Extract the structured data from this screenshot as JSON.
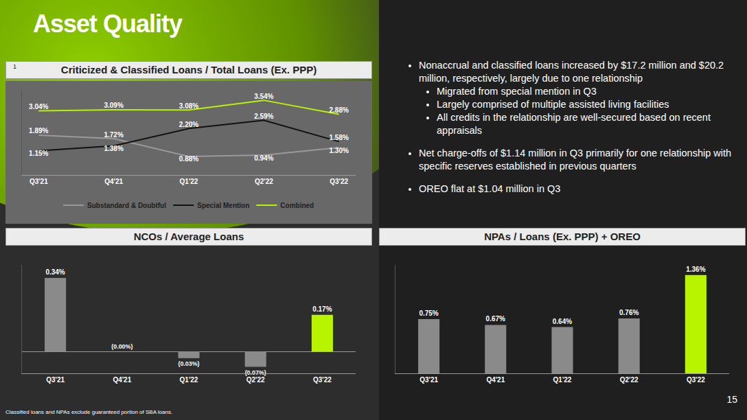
{
  "slide": {
    "title": "Asset Quality",
    "page_number": "15",
    "footnote": "Classified loans and NPAs exclude guaranteed portion of SBA loans.",
    "footnote_marker": "1",
    "bullets": [
      {
        "text": "Nonaccrual and classified loans increased by $17.2 million and $20.2 million, respectively, largely due to one relationship",
        "sub": [
          "Migrated from special mention in Q3",
          "Largely comprised of multiple assisted living facilities",
          "All credits in the relationship are well-secured based on recent appraisals"
        ]
      },
      {
        "text": "Net charge-offs of $1.14 million in Q3 primarily for one relationship with specific reserves established in previous quarters"
      },
      {
        "text": "OREO flat at $1.04 million in Q3"
      }
    ]
  },
  "chart_data": [
    {
      "type": "line",
      "title": "Criticized & Classified Loans / Total Loans (Ex. PPP)",
      "categories": [
        "Q3'21",
        "Q4'21",
        "Q1'22",
        "Q2'22",
        "Q3'22"
      ],
      "series": [
        {
          "name": "Substandard & Doubtful",
          "color": "#9a9a9a",
          "values": [
            1.89,
            1.72,
            0.88,
            0.94,
            1.3
          ],
          "value_labels": [
            "1.89%",
            "1.72%",
            "0.88%",
            "0.94%",
            "1.30%"
          ]
        },
        {
          "name": "Special Mention",
          "color": "#111111",
          "values": [
            1.15,
            1.38,
            2.2,
            2.59,
            1.58
          ],
          "value_labels": [
            "1.15%",
            "1.38%",
            "2.20%",
            "2.59%",
            "1.58%"
          ]
        },
        {
          "name": "Combined",
          "color": "#b8f400",
          "values": [
            3.04,
            3.09,
            3.08,
            3.54,
            2.88
          ],
          "value_labels": [
            "3.04%",
            "3.09%",
            "3.08%",
            "3.54%",
            "2.88%"
          ]
        }
      ],
      "ylim": [
        0,
        4
      ],
      "grid": false,
      "legend": "bottom",
      "data_labels": true,
      "tick_labels": "x"
    },
    {
      "type": "bar",
      "title": "NCOs / Average Loans",
      "categories": [
        "Q3'21",
        "Q4'21",
        "Q1'22",
        "Q2'22",
        "Q3'22"
      ],
      "values": [
        0.34,
        0,
        -0.03,
        -0.07,
        0.17
      ],
      "value_labels": [
        "0.34%",
        "(0.00%)",
        "(0.03%)",
        "(0.07%)",
        "0.17%"
      ],
      "colors": [
        "#8a8a8a",
        "#8a8a8a",
        "#8a8a8a",
        "#8a8a8a",
        "#b8f400"
      ],
      "ylim": [
        -0.1,
        0.4
      ],
      "grid": false,
      "data_labels": true,
      "tick_labels": "x"
    },
    {
      "type": "bar",
      "title": "NPAs / Loans (Ex. PPP) + OREO",
      "categories": [
        "Q3'21",
        "Q4'21",
        "Q1'22",
        "Q2'22",
        "Q3'22"
      ],
      "values": [
        0.75,
        0.67,
        0.64,
        0.76,
        1.36
      ],
      "value_labels": [
        "0.75%",
        "0.67%",
        "0.64%",
        "0.76%",
        "1.36%"
      ],
      "colors": [
        "#8a8a8a",
        "#8a8a8a",
        "#8a8a8a",
        "#8a8a8a",
        "#b8f400"
      ],
      "ylim": [
        0,
        1.5
      ],
      "grid": false,
      "data_labels": true,
      "tick_labels": "x"
    }
  ]
}
